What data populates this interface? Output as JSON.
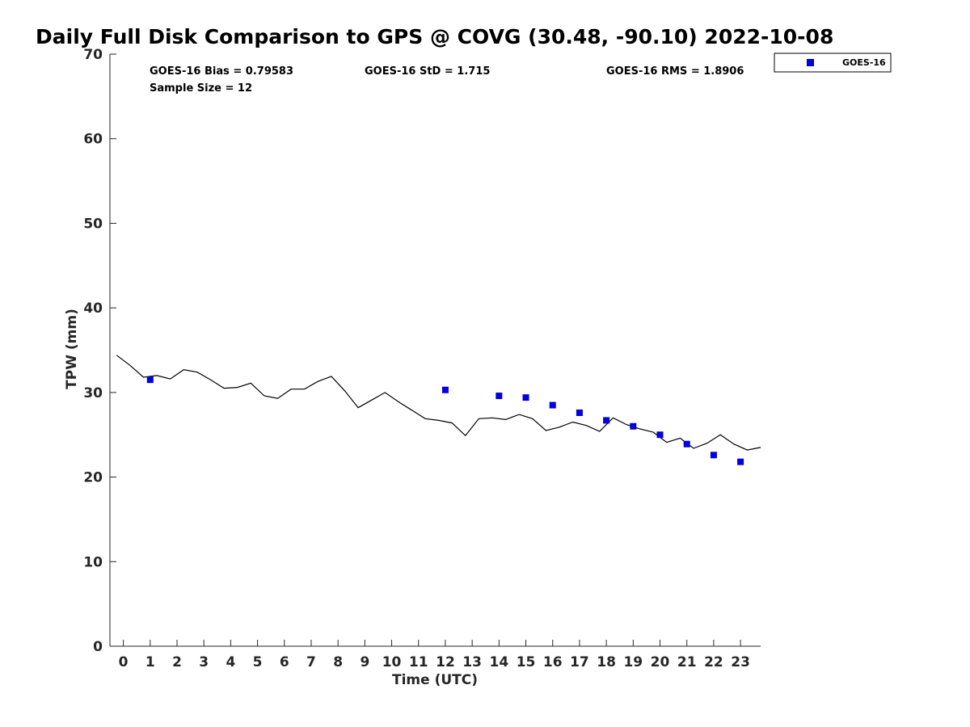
{
  "chart_data": {
    "type": "scatter",
    "title": "Daily Full Disk Comparison to GPS @ COVG (30.48, -90.10) 2022-10-08",
    "xlabel": "Time (UTC)",
    "ylabel": "TPW (mm)",
    "xlim": [
      -0.5,
      23.75
    ],
    "ylim": [
      0,
      70
    ],
    "x_ticks": [
      0,
      1,
      2,
      3,
      4,
      5,
      6,
      7,
      8,
      9,
      10,
      11,
      12,
      13,
      14,
      15,
      16,
      17,
      18,
      19,
      20,
      21,
      22,
      23
    ],
    "y_ticks": [
      0,
      10,
      20,
      30,
      40,
      50,
      60,
      70
    ],
    "grid": false,
    "legend_position": "top-right, outside plot",
    "stats": {
      "bias": "GOES-16 Bias = 0.79583",
      "std": "GOES-16 StD = 1.715",
      "rms": "GOES-16 RMS = 1.8906",
      "sample": "Sample Size = 12"
    },
    "series": [
      {
        "name": "GOES-16",
        "kind": "scatter",
        "marker": "square",
        "color": "#0000dd",
        "x": [
          1,
          12,
          14,
          15,
          16,
          17,
          18,
          19,
          20,
          21,
          22,
          23
        ],
        "y": [
          31.5,
          30.3,
          29.6,
          29.4,
          28.5,
          27.6,
          26.7,
          26.0,
          25.0,
          23.9,
          22.6,
          21.8
        ]
      },
      {
        "kind": "line",
        "color": "#000000",
        "x": [
          -0.25,
          0.25,
          0.75,
          1.25,
          1.75,
          2.25,
          2.75,
          3.25,
          3.75,
          4.25,
          4.75,
          5.25,
          5.75,
          6.25,
          6.75,
          7.25,
          7.75,
          8.25,
          8.75,
          9.25,
          9.75,
          10.25,
          10.75,
          11.25,
          11.75,
          12.25,
          12.75,
          13.25,
          13.75,
          14.25,
          14.75,
          15.25,
          15.75,
          16.25,
          16.75,
          17.25,
          17.75,
          18.25,
          18.75,
          19.25,
          19.75,
          20.25,
          20.75,
          21.25,
          21.75,
          22.25,
          22.75,
          23.25,
          23.75
        ],
        "y": [
          34.4,
          33.2,
          31.8,
          32.0,
          31.6,
          32.7,
          32.4,
          31.5,
          30.5,
          30.6,
          31.1,
          29.6,
          29.3,
          30.4,
          30.4,
          31.3,
          31.9,
          30.2,
          28.2,
          29.1,
          30.0,
          28.9,
          27.9,
          26.9,
          26.7,
          26.4,
          24.9,
          26.9,
          27.0,
          26.8,
          27.4,
          26.9,
          25.5,
          25.9,
          26.5,
          26.1,
          25.4,
          27.0,
          26.2,
          25.7,
          25.3,
          24.1,
          24.6,
          23.4,
          24.0,
          25.0,
          23.9,
          23.2,
          23.5
        ]
      }
    ]
  }
}
